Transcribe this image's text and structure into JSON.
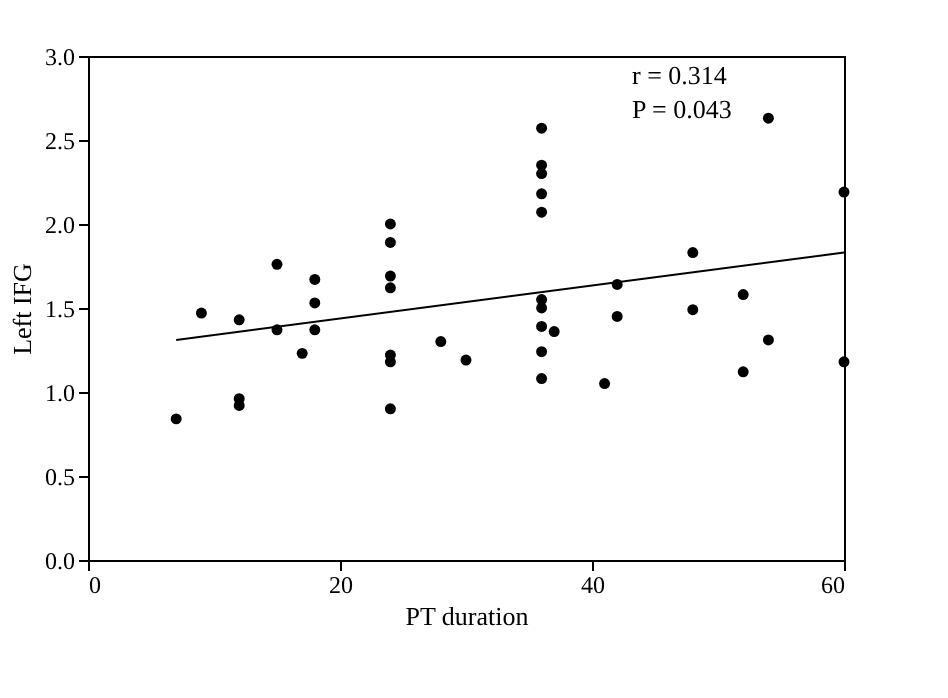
{
  "chart_data": {
    "type": "scatter",
    "xlabel": "PT duration",
    "ylabel": "Left IFG",
    "xlim": [
      0,
      60
    ],
    "ylim": [
      0,
      3
    ],
    "xticks": [
      0,
      20,
      40,
      60
    ],
    "yticks": [
      {
        "value": 0,
        "label": "0.0"
      },
      0.5,
      {
        "value": 1,
        "label": "1.0"
      },
      1.5,
      {
        "value": 2,
        "label": "2.0"
      },
      2.5,
      {
        "value": 3,
        "label": "3.0"
      }
    ],
    "grid": false,
    "annotations": [
      "r = 0.314",
      "P = 0.043"
    ],
    "series": [
      {
        "color": "#000000",
        "marker": "circle",
        "x": [
          7,
          9,
          12,
          12,
          12,
          15,
          15,
          17,
          18,
          18,
          18,
          24,
          24,
          24,
          24,
          24,
          24,
          24,
          28,
          30,
          36,
          36,
          36,
          36,
          36,
          36,
          36,
          36,
          36,
          36,
          37,
          41,
          42,
          42,
          48,
          48,
          52,
          52,
          54,
          54,
          60,
          60
        ],
        "values": [
          0.84,
          1.47,
          1.43,
          0.96,
          0.92,
          1.76,
          1.37,
          1.23,
          1.67,
          1.53,
          1.37,
          2.0,
          1.89,
          1.69,
          1.62,
          1.22,
          1.18,
          0.9,
          1.3,
          1.19,
          2.57,
          2.35,
          2.3,
          2.18,
          2.07,
          1.55,
          1.5,
          1.39,
          1.24,
          1.08,
          1.36,
          1.05,
          1.64,
          1.45,
          1.83,
          1.49,
          1.58,
          1.12,
          2.63,
          1.31,
          2.19,
          1.18
        ]
      },
      {
        "type": "line",
        "color": "#000000",
        "line_style": "solid",
        "x": [
          7,
          60
        ],
        "values": [
          1.31,
          1.83
        ]
      }
    ]
  }
}
